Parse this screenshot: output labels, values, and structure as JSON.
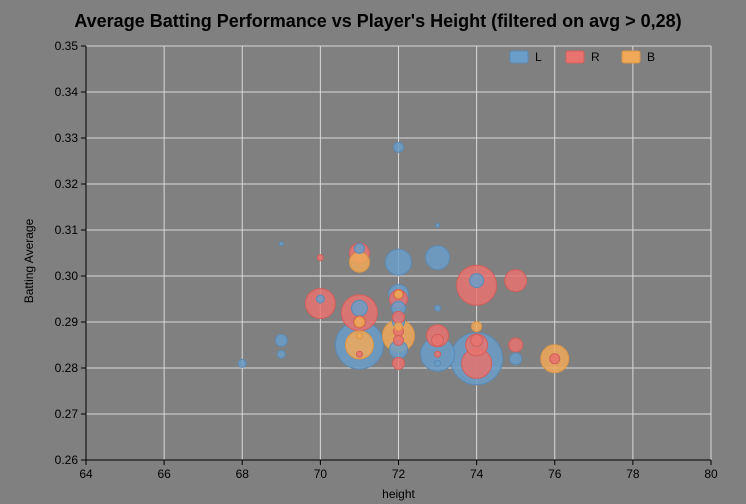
{
  "chart_data": {
    "type": "scatter",
    "title": "Average Batting Performance vs Player's Height (filtered on avg > 0,28)",
    "xlabel": "height",
    "ylabel": "Batting Average",
    "xlim": [
      64,
      80
    ],
    "ylim": [
      0.26,
      0.35
    ],
    "xticks": [
      64,
      66,
      68,
      70,
      72,
      74,
      76,
      78,
      80
    ],
    "yticks": [
      0.26,
      0.27,
      0.28,
      0.29,
      0.3,
      0.31,
      0.32,
      0.33,
      0.34,
      0.35
    ],
    "xtick_labels": [
      "64",
      "66",
      "68",
      "70",
      "72",
      "74",
      "76",
      "78",
      "80"
    ],
    "ytick_labels": [
      "0.26",
      "0.27",
      "0.28",
      "0.29",
      "0.30",
      "0.31",
      "0.32",
      "0.33",
      "0.34",
      "0.35"
    ],
    "grid": true,
    "legend_position": "top-right",
    "size_encoding": "relative bubble size",
    "series": [
      {
        "name": "L",
        "color": "#6a9ec9",
        "stroke": "#5a8ab5",
        "points": [
          {
            "x": 68,
            "y": 0.281,
            "size": 4
          },
          {
            "x": 69,
            "y": 0.307,
            "size": 2
          },
          {
            "x": 69,
            "y": 0.286,
            "size": 6
          },
          {
            "x": 69,
            "y": 0.283,
            "size": 4
          },
          {
            "x": 70,
            "y": 0.295,
            "size": 4
          },
          {
            "x": 71,
            "y": 0.306,
            "size": 5
          },
          {
            "x": 71,
            "y": 0.285,
            "size": 24
          },
          {
            "x": 71,
            "y": 0.293,
            "size": 8
          },
          {
            "x": 72,
            "y": 0.328,
            "size": 5
          },
          {
            "x": 72,
            "y": 0.303,
            "size": 13
          },
          {
            "x": 72,
            "y": 0.296,
            "size": 10
          },
          {
            "x": 72,
            "y": 0.293,
            "size": 7
          },
          {
            "x": 72,
            "y": 0.29,
            "size": 6
          },
          {
            "x": 72,
            "y": 0.284,
            "size": 9
          },
          {
            "x": 73,
            "y": 0.311,
            "size": 2
          },
          {
            "x": 73,
            "y": 0.304,
            "size": 12
          },
          {
            "x": 73,
            "y": 0.293,
            "size": 3
          },
          {
            "x": 73,
            "y": 0.283,
            "size": 17
          },
          {
            "x": 73,
            "y": 0.281,
            "size": 3
          },
          {
            "x": 74,
            "y": 0.299,
            "size": 7
          },
          {
            "x": 74,
            "y": 0.282,
            "size": 26
          },
          {
            "x": 75,
            "y": 0.282,
            "size": 6
          }
        ]
      },
      {
        "name": "R",
        "color": "#e8726e",
        "stroke": "#d35f5b",
        "points": [
          {
            "x": 70,
            "y": 0.304,
            "size": 3
          },
          {
            "x": 70,
            "y": 0.294,
            "size": 15
          },
          {
            "x": 71,
            "y": 0.305,
            "size": 10
          },
          {
            "x": 71,
            "y": 0.292,
            "size": 18
          },
          {
            "x": 71,
            "y": 0.29,
            "size": 6
          },
          {
            "x": 71,
            "y": 0.283,
            "size": 3
          },
          {
            "x": 72,
            "y": 0.296,
            "size": 5
          },
          {
            "x": 72,
            "y": 0.295,
            "size": 9
          },
          {
            "x": 72,
            "y": 0.291,
            "size": 6
          },
          {
            "x": 72,
            "y": 0.288,
            "size": 5
          },
          {
            "x": 72,
            "y": 0.286,
            "size": 5
          },
          {
            "x": 72,
            "y": 0.281,
            "size": 6
          },
          {
            "x": 73,
            "y": 0.287,
            "size": 11
          },
          {
            "x": 73,
            "y": 0.286,
            "size": 6
          },
          {
            "x": 73,
            "y": 0.283,
            "size": 3
          },
          {
            "x": 74,
            "y": 0.298,
            "size": 20
          },
          {
            "x": 74,
            "y": 0.286,
            "size": 6
          },
          {
            "x": 74,
            "y": 0.285,
            "size": 11
          },
          {
            "x": 74,
            "y": 0.281,
            "size": 15
          },
          {
            "x": 75,
            "y": 0.299,
            "size": 11
          },
          {
            "x": 75,
            "y": 0.285,
            "size": 7
          },
          {
            "x": 76,
            "y": 0.282,
            "size": 5
          }
        ]
      },
      {
        "name": "B",
        "color": "#f0a959",
        "stroke": "#dc9545",
        "points": [
          {
            "x": 71,
            "y": 0.303,
            "size": 10
          },
          {
            "x": 71,
            "y": 0.29,
            "size": 5
          },
          {
            "x": 71,
            "y": 0.287,
            "size": 3
          },
          {
            "x": 71,
            "y": 0.285,
            "size": 14
          },
          {
            "x": 72,
            "y": 0.296,
            "size": 4
          },
          {
            "x": 72,
            "y": 0.289,
            "size": 4
          },
          {
            "x": 72,
            "y": 0.287,
            "size": 16
          },
          {
            "x": 74,
            "y": 0.289,
            "size": 5
          },
          {
            "x": 76,
            "y": 0.282,
            "size": 14
          }
        ]
      }
    ]
  }
}
